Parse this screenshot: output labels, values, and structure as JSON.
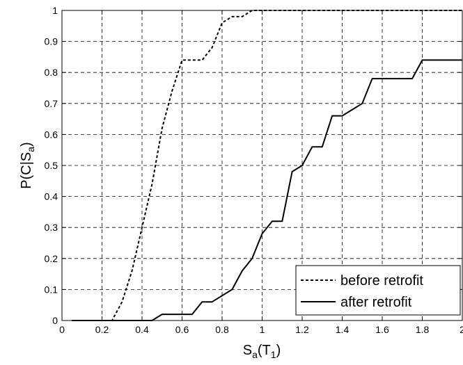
{
  "chart_data": {
    "type": "line",
    "title": "",
    "xlabel": {
      "main": "S",
      "sub1": "a",
      "mid": "(T",
      "sub2": "1",
      "end": ")"
    },
    "ylabel": {
      "main": "P(C|S",
      "sub": "a",
      "end": ")"
    },
    "xlim": [
      0,
      2
    ],
    "ylim": [
      0,
      1
    ],
    "xticks": [
      "0",
      "0.2",
      "0.4",
      "0.6",
      "0.8",
      "1",
      "1.2",
      "1.4",
      "1.6",
      "1.8",
      "2"
    ],
    "yticks": [
      "0",
      "0.1",
      "0.2",
      "0.3",
      "0.4",
      "0.5",
      "0.6",
      "0.7",
      "0.8",
      "0.9",
      "1"
    ],
    "grid": true,
    "legend": "bottom-right",
    "series": [
      {
        "name": "before retrofit",
        "style": "dashed",
        "color": "#000000",
        "x": [
          0.05,
          0.25,
          0.3,
          0.35,
          0.4,
          0.45,
          0.5,
          0.55,
          0.6,
          0.7,
          0.75,
          0.8,
          0.85,
          0.9,
          0.95,
          1.0,
          2.0
        ],
        "y": [
          0,
          0,
          0.06,
          0.16,
          0.3,
          0.44,
          0.62,
          0.74,
          0.84,
          0.84,
          0.88,
          0.96,
          0.98,
          0.98,
          1.0,
          1.0,
          1.0
        ]
      },
      {
        "name": "after retrofit",
        "style": "solid",
        "color": "#000000",
        "x": [
          0.05,
          0.45,
          0.5,
          0.65,
          0.7,
          0.75,
          0.85,
          0.9,
          0.95,
          1.0,
          1.05,
          1.1,
          1.15,
          1.2,
          1.25,
          1.3,
          1.35,
          1.4,
          1.5,
          1.55,
          1.6,
          1.75,
          1.8,
          2.0
        ],
        "y": [
          0,
          0,
          0.02,
          0.02,
          0.06,
          0.06,
          0.1,
          0.16,
          0.2,
          0.28,
          0.32,
          0.32,
          0.48,
          0.5,
          0.56,
          0.56,
          0.66,
          0.66,
          0.7,
          0.78,
          0.78,
          0.78,
          0.84,
          0.84
        ]
      }
    ]
  }
}
